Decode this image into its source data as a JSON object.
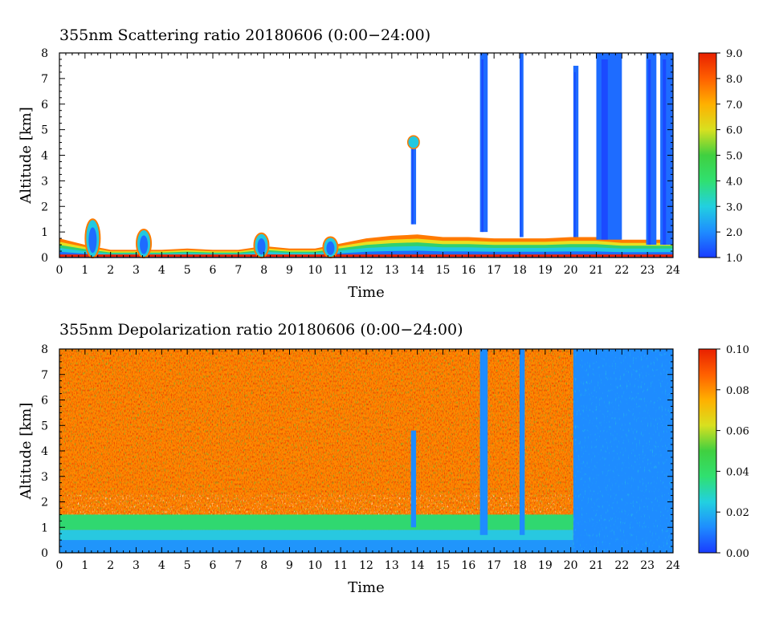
{
  "chart_data": [
    {
      "type": "heatmap",
      "title": "355nm Scattering ratio  20180606 (0:00−24:00)",
      "xlabel": "Time",
      "ylabel": "Altitude [km]",
      "xlim": [
        0,
        24
      ],
      "ylim": [
        0,
        8
      ],
      "x_ticks": [
        "0",
        "1",
        "2",
        "3",
        "4",
        "5",
        "6",
        "7",
        "8",
        "9",
        "10",
        "11",
        "12",
        "13",
        "14",
        "15",
        "16",
        "17",
        "18",
        "19",
        "20",
        "21",
        "22",
        "23",
        "24"
      ],
      "y_ticks": [
        "0",
        "1",
        "2",
        "3",
        "4",
        "5",
        "6",
        "7",
        "8"
      ],
      "colorbar": {
        "min": 1.0,
        "max": 9.0,
        "ticks": [
          "1.0",
          "2.0",
          "3.0",
          "4.0",
          "5.0",
          "6.0",
          "7.0",
          "8.0",
          "9.0"
        ],
        "colors": [
          "#1a3cff",
          "#1e8cff",
          "#22d0e0",
          "#30e070",
          "#40d040",
          "#d8e020",
          "#ffb000",
          "#ff6000",
          "#e82000"
        ]
      },
      "features": [
        {
          "kind": "boundary_layer",
          "x_start": 0,
          "x_end": 24,
          "top_km": [
            0.75,
            0.5,
            0.3,
            0.3,
            0.3,
            0.35,
            0.3,
            0.3,
            0.45,
            0.35,
            0.35,
            0.55,
            0.75,
            0.85,
            0.9,
            0.8,
            0.8,
            0.75,
            0.75,
            0.75,
            0.8,
            0.8,
            0.7,
            0.7,
            0.7
          ]
        },
        {
          "kind": "aerosol_blob",
          "x": 1.3,
          "top_km": 1.5
        },
        {
          "kind": "aerosol_blob",
          "x": 3.3,
          "top_km": 1.1
        },
        {
          "kind": "aerosol_blob",
          "x": 7.9,
          "top_km": 0.95
        },
        {
          "kind": "aerosol_blob",
          "x": 10.6,
          "top_km": 0.8
        },
        {
          "kind": "cloud_column",
          "x_start": 13.75,
          "x_end": 13.95,
          "bottom_km": 1.3,
          "top_km": 4.7
        },
        {
          "kind": "cloud_column",
          "x_start": 16.45,
          "x_end": 16.75,
          "bottom_km": 1.0,
          "top_km": 8.0
        },
        {
          "kind": "cloud_column",
          "x_start": 18.0,
          "x_end": 18.15,
          "bottom_km": 0.8,
          "top_km": 8.0
        },
        {
          "kind": "cloud_column",
          "x_start": 20.1,
          "x_end": 20.3,
          "bottom_km": 0.8,
          "top_km": 7.5
        },
        {
          "kind": "cloud_column",
          "x_start": 21.0,
          "x_end": 22.0,
          "bottom_km": 0.7,
          "top_km": 8.0
        },
        {
          "kind": "cloud_column",
          "x_start": 22.95,
          "x_end": 23.35,
          "bottom_km": 0.5,
          "top_km": 8.0
        },
        {
          "kind": "cloud_column",
          "x_start": 23.5,
          "x_end": 24.0,
          "bottom_km": 0.5,
          "top_km": 8.0
        }
      ]
    },
    {
      "type": "heatmap",
      "title": "355nm Depolarization ratio  20180606 (0:00−24:00)",
      "xlabel": "Time",
      "ylabel": "Altitude [km]",
      "xlim": [
        0,
        24
      ],
      "ylim": [
        0,
        8
      ],
      "x_ticks": [
        "0",
        "1",
        "2",
        "3",
        "4",
        "5",
        "6",
        "7",
        "8",
        "9",
        "10",
        "11",
        "12",
        "13",
        "14",
        "15",
        "16",
        "17",
        "18",
        "19",
        "20",
        "21",
        "22",
        "23",
        "24"
      ],
      "y_ticks": [
        "0",
        "1",
        "2",
        "3",
        "4",
        "5",
        "6",
        "7",
        "8"
      ],
      "colorbar": {
        "min": 0.0,
        "max": 0.1,
        "ticks": [
          "0.00",
          "0.02",
          "0.04",
          "0.06",
          "0.08",
          "0.10"
        ],
        "colors": [
          "#1a3cff",
          "#1e8cff",
          "#22d0e0",
          "#30e070",
          "#40d040",
          "#d8e020",
          "#ffb000",
          "#ff6000",
          "#e82000"
        ]
      },
      "features": [
        {
          "kind": "noisy_high_depol",
          "x_start": 0,
          "x_end": 20.1,
          "bottom_km": 2.4,
          "top_km": 8.0
        },
        {
          "kind": "low_depol_region",
          "x_start": 20.1,
          "x_end": 24,
          "bottom_km": 0,
          "top_km": 8.0
        },
        {
          "kind": "gap_region",
          "x_start": 0.3,
          "x_end": 20.0,
          "bottom_km": 1.4,
          "top_km": 2.3
        },
        {
          "kind": "green_layer",
          "x_start": 0,
          "x_end": 20.1,
          "bottom_km": 0.9,
          "top_km": 1.5
        },
        {
          "kind": "cloud_column",
          "x_start": 13.75,
          "x_end": 13.95,
          "bottom_km": 1.0,
          "top_km": 4.8
        },
        {
          "kind": "cloud_column",
          "x_start": 16.45,
          "x_end": 16.75,
          "bottom_km": 0.7,
          "top_km": 8.0
        },
        {
          "kind": "cloud_column",
          "x_start": 18.0,
          "x_end": 18.2,
          "bottom_km": 0.7,
          "top_km": 8.0
        }
      ]
    }
  ]
}
